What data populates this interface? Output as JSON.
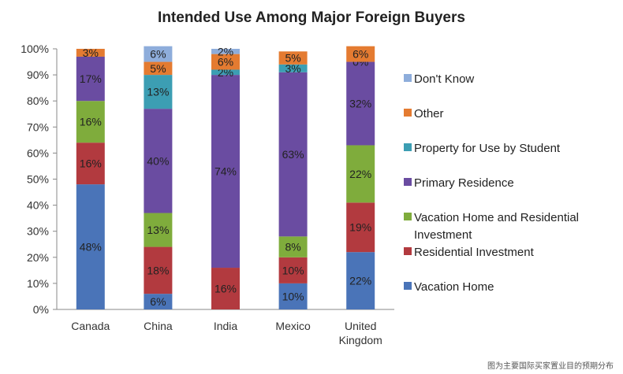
{
  "chart_data": {
    "type": "bar",
    "stacked": true,
    "title": "Intended Use Among Major Foreign Buyers",
    "categories": [
      "Canada",
      "China",
      "India",
      "Mexico",
      "United Kingdom"
    ],
    "category_lines": [
      [
        "Canada"
      ],
      [
        "China"
      ],
      [
        "India"
      ],
      [
        "Mexico"
      ],
      [
        "United",
        "Kingdom"
      ]
    ],
    "ylim": [
      0,
      100
    ],
    "yticks": [
      "0%",
      "10%",
      "20%",
      "30%",
      "40%",
      "50%",
      "60%",
      "70%",
      "80%",
      "90%",
      "100%"
    ],
    "grid": false,
    "legend_position": "right",
    "series": [
      {
        "name": "Vacation Home",
        "color": "#4a74b8",
        "values": [
          48,
          6,
          0,
          10,
          22
        ],
        "labels": [
          "48%",
          "6%",
          "",
          "10%",
          "22%"
        ]
      },
      {
        "name": "Residential Investment",
        "color": "#b23a3f",
        "values": [
          16,
          18,
          16,
          10,
          19
        ],
        "labels": [
          "16%",
          "18%",
          "16%",
          "10%",
          "19%"
        ]
      },
      {
        "name": "Vacation Home and Residential Investment",
        "legend_lines": [
          "Vacation Home and Residential",
          "Investment"
        ],
        "color": "#7fac3c",
        "values": [
          16,
          13,
          0,
          8,
          22
        ],
        "labels": [
          "16%",
          "13%",
          "",
          "8%",
          "22%"
        ]
      },
      {
        "name": "Primary Residence",
        "color": "#6a4ca1",
        "values": [
          17,
          40,
          74,
          63,
          32
        ],
        "labels": [
          "17%",
          "40%",
          "74%",
          "63%",
          "32%"
        ]
      },
      {
        "name": "Property for Use by Student",
        "color": "#3c9eb3",
        "values": [
          0,
          13,
          2,
          3,
          0
        ],
        "labels": [
          "",
          "13%",
          "2%",
          "3%",
          "0%"
        ]
      },
      {
        "name": "Other",
        "color": "#e47b31",
        "values": [
          3,
          5,
          6,
          5,
          6
        ],
        "labels": [
          "3%",
          "5%",
          "6%",
          "5%",
          "6%"
        ]
      },
      {
        "name": "Don't Know",
        "color": "#8eaddb",
        "values": [
          0,
          6,
          2,
          0,
          0
        ],
        "labels": [
          "",
          "6%",
          "2%",
          "",
          ""
        ]
      }
    ]
  },
  "caption": "图为主要国际买家置业目的预期分布"
}
